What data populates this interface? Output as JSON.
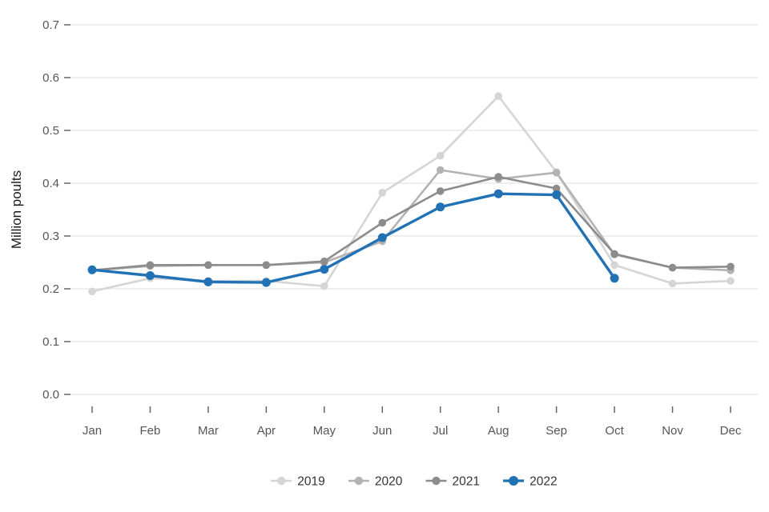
{
  "chart_data": {
    "type": "line",
    "title": "",
    "xlabel": "",
    "ylabel": "Million poults",
    "x": [
      "Jan",
      "Feb",
      "Mar",
      "Apr",
      "May",
      "Jun",
      "Jul",
      "Aug",
      "Sep",
      "Oct",
      "Nov",
      "Dec"
    ],
    "ylim": [
      0.0,
      0.7
    ],
    "yticks": [
      0.0,
      0.1,
      0.2,
      0.3,
      0.4,
      0.5,
      0.6,
      0.7
    ],
    "grid": true,
    "legend_position": "bottom",
    "colors": {
      "grid": "#e4e4e4",
      "tick": "#666666",
      "axis_text": "#555555",
      "legend_text": "#333333",
      "background": "#ffffff"
    },
    "series": [
      {
        "name": "2019",
        "color": "#d5d5d5",
        "emphasis": false,
        "values": [
          0.195,
          0.22,
          0.215,
          0.215,
          0.205,
          0.382,
          0.452,
          0.565,
          0.421,
          0.245,
          0.21,
          0.215
        ]
      },
      {
        "name": "2020",
        "color": "#b3b3b3",
        "emphasis": false,
        "values": [
          0.235,
          0.243,
          0.245,
          0.245,
          0.25,
          0.29,
          0.425,
          0.408,
          0.42,
          0.265,
          0.24,
          0.235
        ]
      },
      {
        "name": "2021",
        "color": "#8c8c8c",
        "emphasis": false,
        "values": [
          0.235,
          0.245,
          0.245,
          0.245,
          0.252,
          0.325,
          0.385,
          0.412,
          0.39,
          0.266,
          0.24,
          0.242
        ]
      },
      {
        "name": "2022",
        "color": "#2171b5",
        "emphasis": true,
        "values": [
          0.236,
          0.225,
          0.213,
          0.212,
          0.237,
          0.297,
          0.355,
          0.38,
          0.378,
          0.22,
          null,
          null
        ]
      }
    ]
  }
}
